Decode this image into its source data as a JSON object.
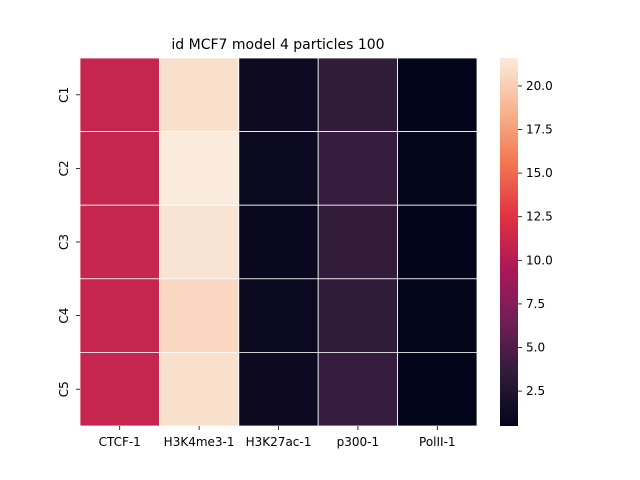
{
  "chart_data": {
    "type": "heatmap",
    "title": "id MCF7 model 4 particles 100",
    "xlabel": "",
    "ylabel": "",
    "columns": [
      "CTCF-1",
      "H3K4me3-1",
      "H3K27ac-1",
      "p300-1",
      "PolII-1"
    ],
    "rows": [
      "C1",
      "C2",
      "C3",
      "C4",
      "C5"
    ],
    "values": [
      [
        11.0,
        21.0,
        1.2,
        3.6,
        0.5
      ],
      [
        11.0,
        21.6,
        1.0,
        3.8,
        0.6
      ],
      [
        11.0,
        21.2,
        0.9,
        3.7,
        0.5
      ],
      [
        11.0,
        20.5,
        1.0,
        3.5,
        0.6
      ],
      [
        11.0,
        21.0,
        1.1,
        3.8,
        0.5
      ]
    ],
    "colorbar": {
      "min": 0.5,
      "max": 21.6,
      "ticks": [
        2.5,
        5.0,
        7.5,
        10.0,
        12.5,
        15.0,
        17.5,
        20.0
      ],
      "tick_labels": [
        "2.5",
        "5.0",
        "7.5",
        "10.0",
        "12.5",
        "15.0",
        "17.5",
        "20.0"
      ],
      "colormap": "rocket",
      "stops": [
        "#03051a",
        "#2f1b3a",
        "#701f57",
        "#ad1759",
        "#e13342",
        "#f37651",
        "#f6b48f",
        "#faebdd"
      ]
    },
    "grid": false,
    "cell_separator_color": "#ffffff"
  }
}
